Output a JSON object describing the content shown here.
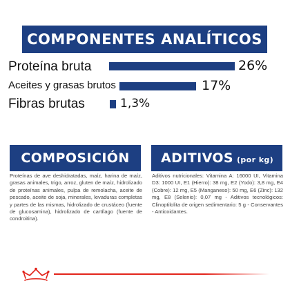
{
  "analytics": {
    "title": "COMPONENTES ANALÍTICOS",
    "rows": [
      {
        "label": "Proteína bruta",
        "value": "26%",
        "fraction": 0.26
      },
      {
        "label": "Aceites y grasas brutos",
        "value": "17%",
        "fraction": 0.17
      },
      {
        "label": "Fibras brutas",
        "value": "1,3%",
        "fraction": 0.013
      }
    ]
  },
  "composition": {
    "title": "COMPOSICIÓN",
    "text": "Proteínas de ave deshidratadas, maíz, harina de maíz, grasas animales, trigo, arroz, gluten de maíz, hidrolizado de proteínas animales, pulpa de remolacha, aceite de pescado, aceite de soja, minerales, levaduras completas y partes de las mismas, hidrolizado de crustáceo (fuente de glucosamina), hidrolizado de cartílago (fuente de condroitina)."
  },
  "additives": {
    "title": "ADITIVOS",
    "unit": "(por kg)",
    "text": "Aditivos nutricionales: Vitamina A: 16000 UI, Vitamina D3: 1000 UI, E1 (Hierro): 38 mg, E2 (Yodo): 3,8 mg, E4 (Cobre): 12 mg, E5 (Manganeso): 50 mg, E6 (Zinc): 132 mg, E8 (Selenio): 0,07 mg - Aditivos tecnológicos: Clinoptilolita de origen sedimentario: 5 g - Conservantes - Antioxidantes."
  },
  "brand": {
    "logo_icon": "royal-canin-crown-icon",
    "accent_color": "#e2231a",
    "primary_color": "#1d3f82"
  }
}
